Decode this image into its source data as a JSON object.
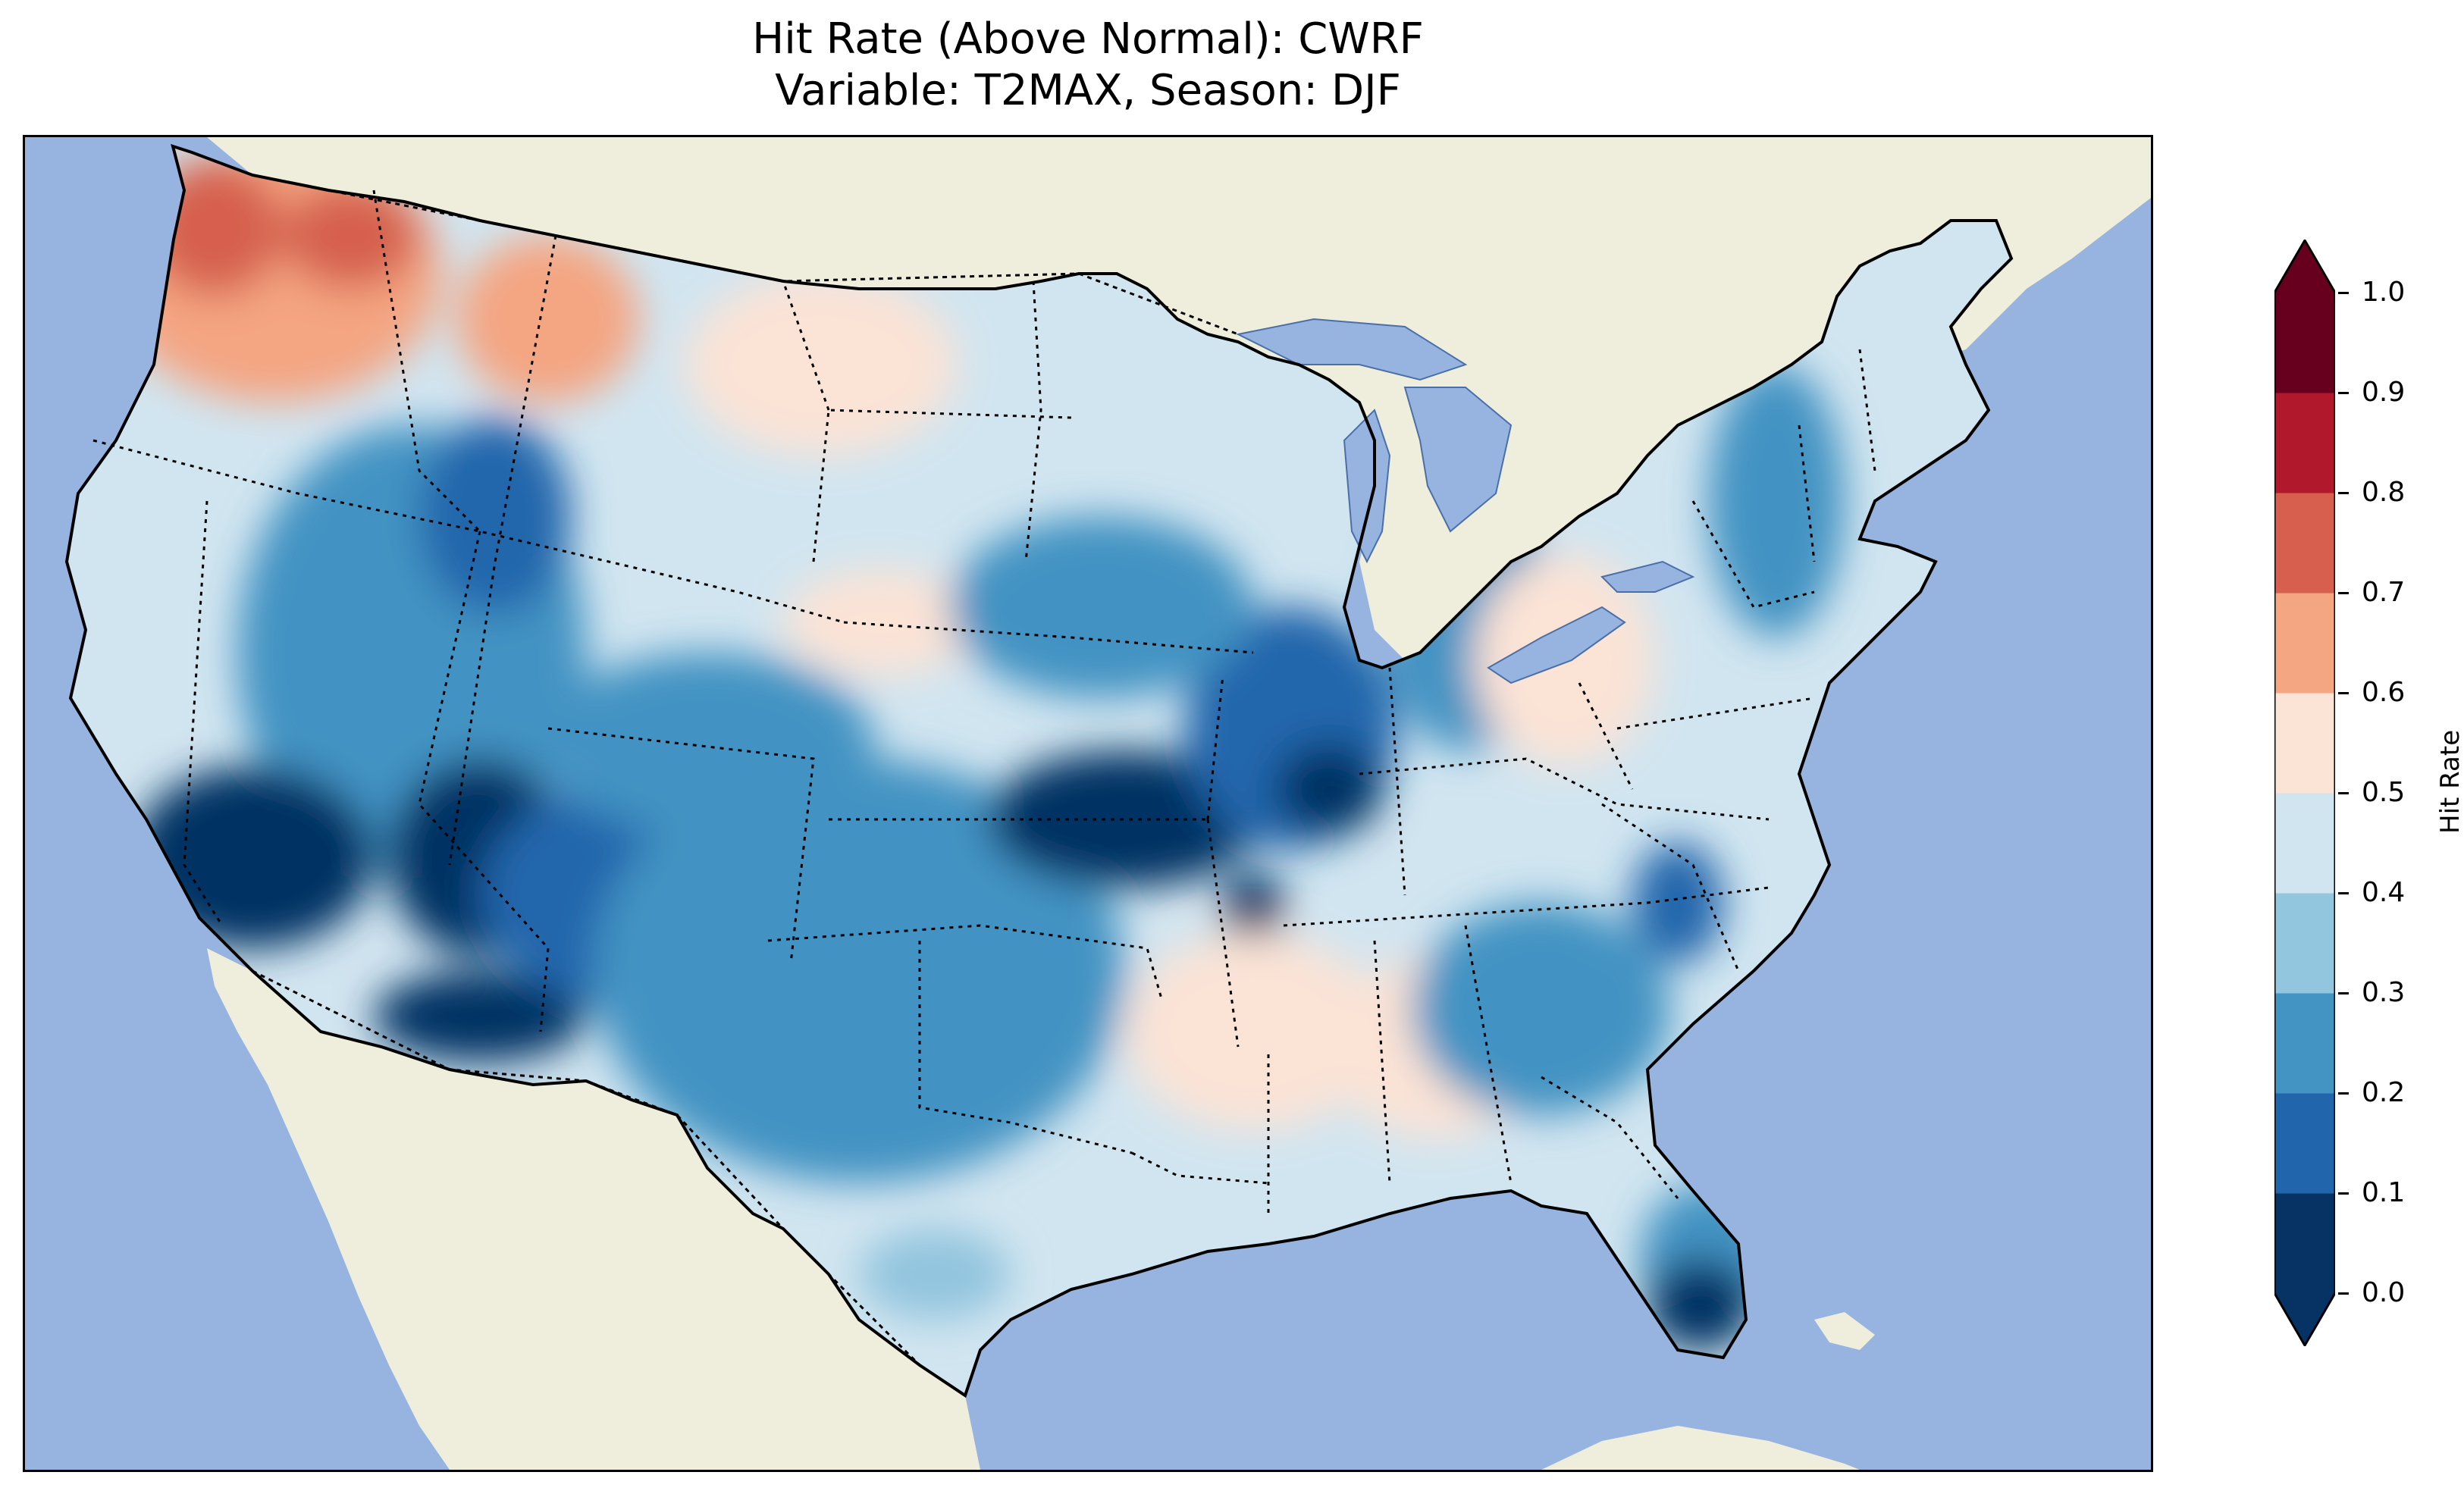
{
  "title": {
    "line1": "Hit Rate (Above Normal): CWRF",
    "line2": "Variable: T2MAX, Season: DJF"
  },
  "map": {
    "region": "Contiguous United States",
    "projection": "Lambert conformal",
    "ocean_color": "#97b4e0",
    "land_color": "#efeddb",
    "coastline_color": "#000000",
    "state_border_style": "dotted"
  },
  "colorbar": {
    "label": "Hit Rate",
    "ticks": [
      "0.0",
      "0.1",
      "0.2",
      "0.3",
      "0.4",
      "0.5",
      "0.6",
      "0.7",
      "0.8",
      "0.9",
      "1.0"
    ],
    "colors": [
      "#063264",
      "#2166ac",
      "#4393c3",
      "#92c5de",
      "#d1e5f0",
      "#fbe3d6",
      "#f4a582",
      "#d6604d",
      "#b2182b",
      "#67001f"
    ],
    "extend": "both",
    "orientation": "vertical"
  },
  "chart_data": {
    "type": "heatmap",
    "title": "Hit Rate (Above Normal): CWRF\nVariable: T2MAX, Season: DJF",
    "colorbar_label": "Hit Rate",
    "value_range": [
      0.0,
      1.0
    ],
    "bins": [
      0.0,
      0.1,
      0.2,
      0.3,
      0.4,
      0.5,
      0.6,
      0.7,
      0.8,
      0.9,
      1.0
    ],
    "regions": [
      {
        "name": "Pacific Northwest",
        "approx_value": 0.65
      },
      {
        "name": "Northern Rockies / Montana",
        "approx_value": 0.45
      },
      {
        "name": "Southwest deserts (CA/NV/AZ)",
        "approx_value": 0.1
      },
      {
        "name": "Southern Plains / Texas",
        "approx_value": 0.25
      },
      {
        "name": "Midwest / Missouri-Illinois",
        "approx_value": 0.15
      },
      {
        "name": "Northern Plains / Dakotas",
        "approx_value": 0.5
      },
      {
        "name": "Gulf Coast / Deep South",
        "approx_value": 0.5
      },
      {
        "name": "Ohio Valley",
        "approx_value": 0.52
      },
      {
        "name": "Southeast / Carolinas",
        "approx_value": 0.25
      },
      {
        "name": "South Florida",
        "approx_value": 0.1
      },
      {
        "name": "Northeast / New England",
        "approx_value": 0.35
      }
    ]
  }
}
